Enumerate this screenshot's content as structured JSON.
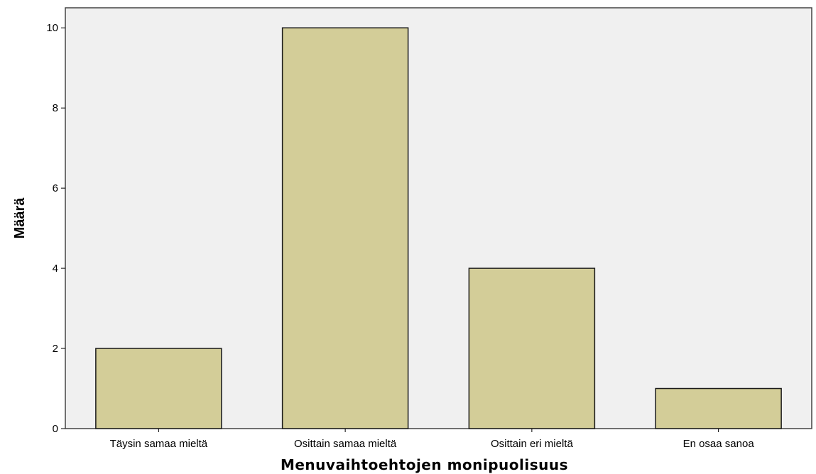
{
  "chart_data": {
    "type": "bar",
    "title": "",
    "xlabel": "Menuvaihtoehtojen monipuolisuus",
    "ylabel": "Määrä",
    "categories": [
      "Täysin samaa mieltä",
      "Osittain samaa mieltä",
      "Osittain eri mieltä",
      "En osaa sanoa"
    ],
    "values": [
      2,
      10,
      4,
      1
    ],
    "ylim": [
      0,
      10.5
    ],
    "yticks": [
      0,
      2,
      4,
      6,
      8,
      10
    ],
    "grid": false,
    "colors": {
      "bar_fill": "#d3cd98",
      "bar_stroke": "#1a1a1a",
      "plot_background": "#f0f0f0",
      "axis": "#444444"
    }
  }
}
